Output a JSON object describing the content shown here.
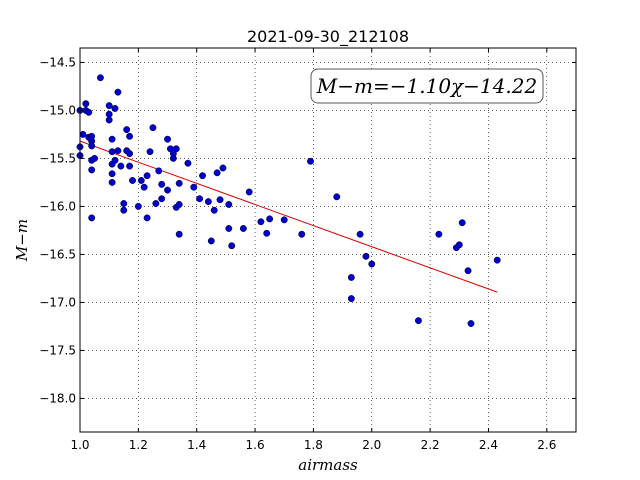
{
  "chart_data": {
    "type": "scatter",
    "title": "2021-09-30_212108",
    "xlabel": "airmass",
    "ylabel": "M−m",
    "xlim": [
      1.0,
      2.7
    ],
    "ylim": [
      -18.35,
      -14.35
    ],
    "y_inverted": true,
    "grid": true,
    "grid_style": "dotted",
    "x_ticks": [
      1.0,
      1.2,
      1.4,
      1.6,
      1.8,
      2.0,
      2.2,
      2.4,
      2.6
    ],
    "x_tick_labels": [
      "1.0",
      "1.2",
      "1.4",
      "1.6",
      "1.8",
      "2.0",
      "2.2",
      "2.4",
      "2.6"
    ],
    "y_ticks": [
      -14.5,
      -15.0,
      -15.5,
      -16.0,
      -16.5,
      -17.0,
      -17.5,
      -18.0
    ],
    "y_tick_labels": [
      "−14.5",
      "−15.0",
      "−15.5",
      "−16.0",
      "−16.5",
      "−17.0",
      "−17.5",
      "−18.0"
    ],
    "annotation": "M−m=−1.10χ−14.22",
    "annotation_placement": "top-right",
    "colors": {
      "points": "#0000cc",
      "fit_line": "#dd0000"
    },
    "fit": {
      "slope": -1.1,
      "intercept": -14.22,
      "x_range": [
        1.0,
        2.43
      ]
    },
    "series": [
      {
        "values": [
          [
            1.0,
            -15.0
          ],
          [
            1.0,
            -15.38
          ],
          [
            1.0,
            -15.47
          ],
          [
            1.01,
            -15.25
          ],
          [
            1.02,
            -14.93
          ],
          [
            1.02,
            -15.0
          ],
          [
            1.03,
            -15.28
          ],
          [
            1.03,
            -15.02
          ],
          [
            1.04,
            -15.32
          ],
          [
            1.04,
            -15.27
          ],
          [
            1.04,
            -15.37
          ],
          [
            1.04,
            -15.52
          ],
          [
            1.04,
            -15.62
          ],
          [
            1.05,
            -15.5
          ],
          [
            1.04,
            -16.12
          ],
          [
            1.07,
            -14.66
          ],
          [
            1.1,
            -14.95
          ],
          [
            1.1,
            -15.04
          ],
          [
            1.1,
            -15.1
          ],
          [
            1.11,
            -15.3
          ],
          [
            1.11,
            -15.43
          ],
          [
            1.11,
            -15.56
          ],
          [
            1.11,
            -15.66
          ],
          [
            1.11,
            -15.75
          ],
          [
            1.12,
            -14.98
          ],
          [
            1.12,
            -15.52
          ],
          [
            1.13,
            -14.81
          ],
          [
            1.13,
            -15.42
          ],
          [
            1.14,
            -15.58
          ],
          [
            1.15,
            -15.97
          ],
          [
            1.15,
            -16.04
          ],
          [
            1.16,
            -15.2
          ],
          [
            1.16,
            -15.42
          ],
          [
            1.17,
            -15.27
          ],
          [
            1.17,
            -15.45
          ],
          [
            1.17,
            -15.58
          ],
          [
            1.18,
            -15.73
          ],
          [
            1.2,
            -16.0
          ],
          [
            1.21,
            -15.73
          ],
          [
            1.22,
            -15.8
          ],
          [
            1.23,
            -16.12
          ],
          [
            1.23,
            -15.68
          ],
          [
            1.24,
            -15.43
          ],
          [
            1.25,
            -15.18
          ],
          [
            1.26,
            -15.97
          ],
          [
            1.27,
            -15.63
          ],
          [
            1.28,
            -15.92
          ],
          [
            1.28,
            -15.77
          ],
          [
            1.3,
            -15.83
          ],
          [
            1.3,
            -15.3
          ],
          [
            1.31,
            -15.4
          ],
          [
            1.32,
            -15.45
          ],
          [
            1.32,
            -15.5
          ],
          [
            1.33,
            -15.4
          ],
          [
            1.33,
            -16.01
          ],
          [
            1.34,
            -15.98
          ],
          [
            1.34,
            -16.29
          ],
          [
            1.34,
            -15.76
          ],
          [
            1.37,
            -15.55
          ],
          [
            1.39,
            -15.8
          ],
          [
            1.41,
            -15.92
          ],
          [
            1.42,
            -15.68
          ],
          [
            1.44,
            -15.95
          ],
          [
            1.45,
            -16.36
          ],
          [
            1.46,
            -16.04
          ],
          [
            1.47,
            -15.65
          ],
          [
            1.48,
            -15.93
          ],
          [
            1.49,
            -15.6
          ],
          [
            1.51,
            -15.98
          ],
          [
            1.51,
            -16.23
          ],
          [
            1.52,
            -16.41
          ],
          [
            1.56,
            -16.23
          ],
          [
            1.58,
            -15.85
          ],
          [
            1.62,
            -16.16
          ],
          [
            1.64,
            -16.28
          ],
          [
            1.65,
            -16.13
          ],
          [
            1.7,
            -16.14
          ],
          [
            1.76,
            -16.29
          ],
          [
            1.79,
            -15.53
          ],
          [
            1.88,
            -15.9
          ],
          [
            1.93,
            -16.96
          ],
          [
            1.93,
            -16.74
          ],
          [
            1.96,
            -16.29
          ],
          [
            1.98,
            -16.52
          ],
          [
            2.0,
            -16.6
          ],
          [
            2.16,
            -17.19
          ],
          [
            2.23,
            -16.29
          ],
          [
            2.29,
            -16.43
          ],
          [
            2.3,
            -16.4
          ],
          [
            2.31,
            -16.17
          ],
          [
            2.33,
            -16.67
          ],
          [
            2.34,
            -17.22
          ],
          [
            2.43,
            -16.56
          ]
        ]
      }
    ]
  }
}
